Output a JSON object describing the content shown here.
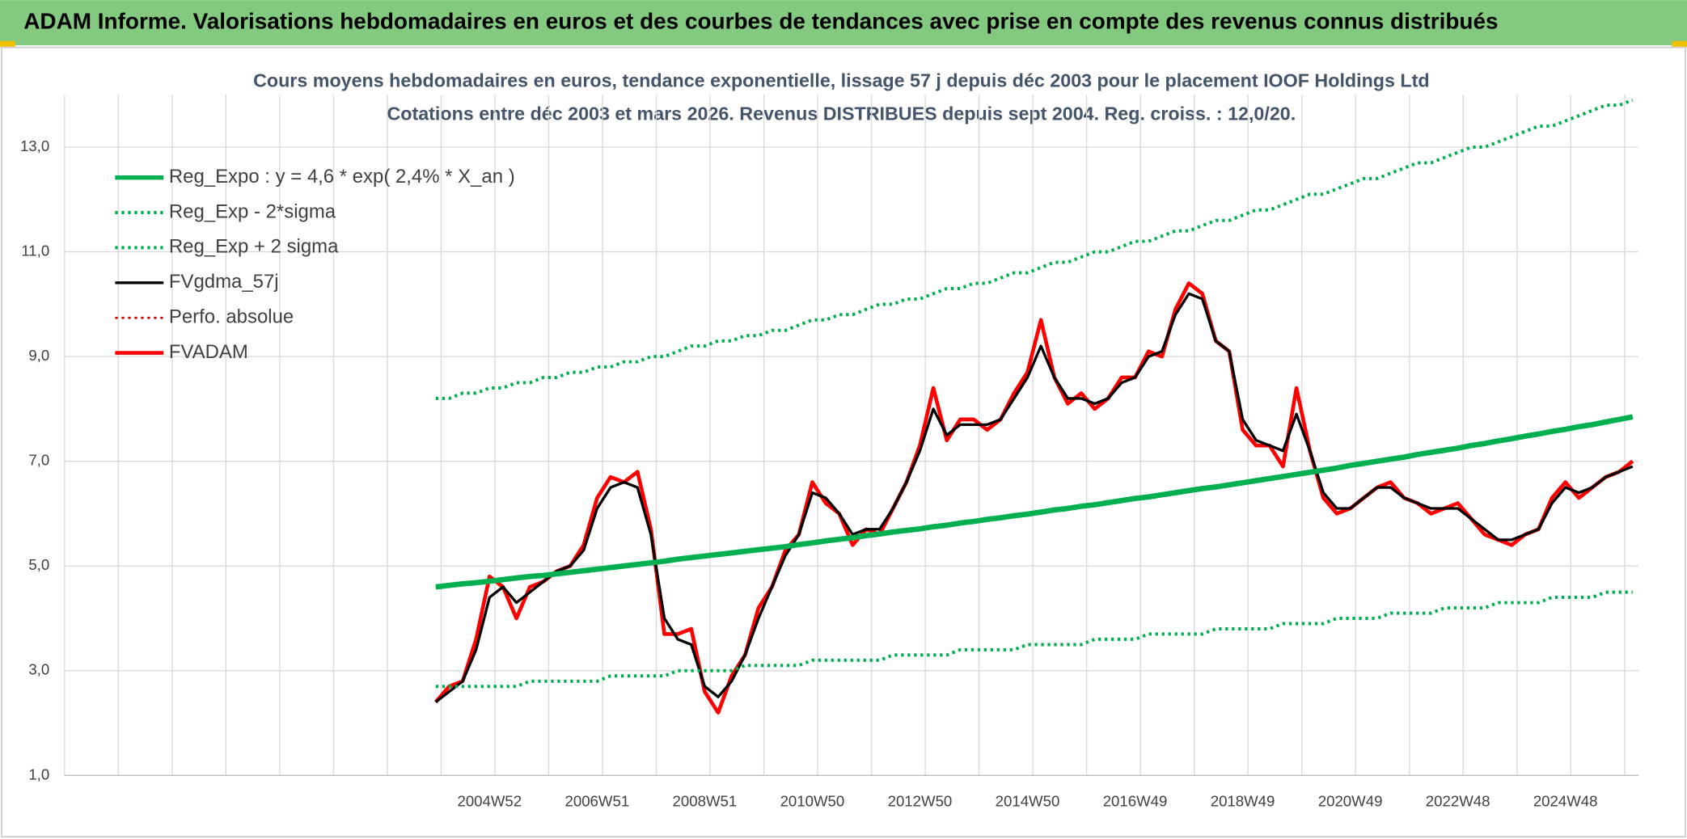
{
  "header": {
    "title": "ADAM Informe. Valorisations hebdomadaires en euros et des courbes de tendances avec prise en compte des revenus connus distribués"
  },
  "chart_data": {
    "type": "line",
    "title": "Cours moyens hebdomadaires en euros, tendance exponentielle, lissage 57 j depuis déc 2003 pour le placement IOOF Holdings Ltd",
    "subtitle": "Cotations entre déc 2003 et mars 2026. Revenus DISTRIBUES depuis sept 2004. Reg. croiss. : 12,0/20.",
    "categories": [
      null,
      null,
      null,
      null,
      "2004W52",
      null,
      null,
      null,
      null,
      null,
      null,
      null,
      "2006W51",
      null,
      null,
      null,
      null,
      null,
      null,
      null,
      "2008W51",
      null,
      null,
      null,
      null,
      null,
      null,
      null,
      "2010W50",
      null,
      null,
      null,
      null,
      null,
      null,
      null,
      "2012W50",
      null,
      null,
      null,
      null,
      null,
      null,
      null,
      "2014W50",
      null,
      null,
      null,
      null,
      null,
      null,
      null,
      "2016W49",
      null,
      null,
      null,
      null,
      null,
      null,
      null,
      "2018W49",
      null,
      null,
      null,
      null,
      null,
      null,
      null,
      "2020W49",
      null,
      null,
      null,
      null,
      null,
      null,
      null,
      "2022W48",
      null,
      null,
      null,
      null,
      null,
      null,
      null,
      "2024W48",
      null,
      null,
      null,
      null,
      null
    ],
    "ylim": [
      1,
      14
    ],
    "yticks": [
      {
        "value": 1,
        "label": "1,0"
      },
      {
        "value": 3,
        "label": "3,0"
      },
      {
        "value": 5,
        "label": "5,0"
      },
      {
        "value": 7,
        "label": "7,0"
      },
      {
        "value": 9,
        "label": "9,0"
      },
      {
        "value": 11,
        "label": "11,0"
      },
      {
        "value": 13,
        "label": "13,0"
      }
    ],
    "grid": true,
    "legend": "top-left",
    "series": [
      {
        "name": "Reg_Expo : y = 4,6 * exp( 2,4% *  X_an )",
        "color": "#00b050",
        "style": "solid",
        "width": 5,
        "values": [
          4.6,
          4.63,
          4.66,
          4.68,
          4.71,
          4.74,
          4.77,
          4.8,
          4.82,
          4.85,
          4.88,
          4.91,
          4.94,
          4.97,
          5.0,
          5.03,
          5.06,
          5.09,
          5.13,
          5.16,
          5.19,
          5.22,
          5.25,
          5.28,
          5.31,
          5.34,
          5.37,
          5.41,
          5.44,
          5.48,
          5.51,
          5.54,
          5.58,
          5.61,
          5.65,
          5.68,
          5.71,
          5.75,
          5.78,
          5.82,
          5.85,
          5.89,
          5.92,
          5.96,
          5.99,
          6.03,
          6.07,
          6.1,
          6.14,
          6.17,
          6.21,
          6.25,
          6.29,
          6.32,
          6.36,
          6.4,
          6.44,
          6.48,
          6.51,
          6.55,
          6.59,
          6.63,
          6.67,
          6.71,
          6.75,
          6.79,
          6.83,
          6.87,
          6.92,
          6.96,
          7.0,
          7.04,
          7.08,
          7.13,
          7.17,
          7.21,
          7.25,
          7.3,
          7.34,
          7.39,
          7.43,
          7.48,
          7.52,
          7.57,
          7.61,
          7.66,
          7.7,
          7.75,
          7.8,
          7.85
        ]
      },
      {
        "name": "Reg_Exp - 2*sigma",
        "color": "#00b050",
        "style": "dotted",
        "width": 3,
        "values": [
          2.7,
          2.7,
          2.7,
          2.7,
          2.7,
          2.7,
          2.7,
          2.8,
          2.8,
          2.8,
          2.8,
          2.8,
          2.8,
          2.9,
          2.9,
          2.9,
          2.9,
          2.9,
          3.0,
          3.0,
          3.0,
          3.0,
          3.0,
          3.1,
          3.1,
          3.1,
          3.1,
          3.1,
          3.2,
          3.2,
          3.2,
          3.2,
          3.2,
          3.2,
          3.3,
          3.3,
          3.3,
          3.3,
          3.3,
          3.4,
          3.4,
          3.4,
          3.4,
          3.4,
          3.5,
          3.5,
          3.5,
          3.5,
          3.5,
          3.6,
          3.6,
          3.6,
          3.6,
          3.7,
          3.7,
          3.7,
          3.7,
          3.7,
          3.8,
          3.8,
          3.8,
          3.8,
          3.8,
          3.9,
          3.9,
          3.9,
          3.9,
          4.0,
          4.0,
          4.0,
          4.0,
          4.1,
          4.1,
          4.1,
          4.1,
          4.2,
          4.2,
          4.2,
          4.2,
          4.3,
          4.3,
          4.3,
          4.3,
          4.4,
          4.4,
          4.4,
          4.4,
          4.5,
          4.5,
          4.5
        ]
      },
      {
        "name": "Reg_Exp + 2 sigma",
        "color": "#00b050",
        "style": "dotted",
        "width": 3,
        "values": [
          8.2,
          8.2,
          8.3,
          8.3,
          8.4,
          8.4,
          8.5,
          8.5,
          8.6,
          8.6,
          8.7,
          8.7,
          8.8,
          8.8,
          8.9,
          8.9,
          9.0,
          9.0,
          9.1,
          9.2,
          9.2,
          9.3,
          9.3,
          9.4,
          9.4,
          9.5,
          9.5,
          9.6,
          9.7,
          9.7,
          9.8,
          9.8,
          9.9,
          10.0,
          10.0,
          10.1,
          10.1,
          10.2,
          10.3,
          10.3,
          10.4,
          10.4,
          10.5,
          10.6,
          10.6,
          10.7,
          10.8,
          10.8,
          10.9,
          11.0,
          11.0,
          11.1,
          11.2,
          11.2,
          11.3,
          11.4,
          11.4,
          11.5,
          11.6,
          11.6,
          11.7,
          11.8,
          11.8,
          11.9,
          12.0,
          12.1,
          12.1,
          12.2,
          12.3,
          12.4,
          12.4,
          12.5,
          12.6,
          12.7,
          12.7,
          12.8,
          12.9,
          13.0,
          13.0,
          13.1,
          13.2,
          13.3,
          13.4,
          13.4,
          13.5,
          13.6,
          13.7,
          13.8,
          13.8,
          13.9
        ]
      },
      {
        "name": "FVgdma_57j",
        "color": "#000000",
        "style": "solid",
        "width": 2.5,
        "values": [
          2.4,
          2.6,
          2.8,
          3.4,
          4.4,
          4.6,
          4.3,
          4.5,
          4.7,
          4.9,
          5.0,
          5.3,
          6.1,
          6.5,
          6.6,
          6.5,
          5.6,
          4.0,
          3.6,
          3.5,
          2.7,
          2.5,
          2.8,
          3.3,
          4.0,
          4.6,
          5.2,
          5.6,
          6.4,
          6.3,
          6.0,
          5.6,
          5.7,
          5.7,
          6.1,
          6.6,
          7.2,
          8.0,
          7.5,
          7.7,
          7.7,
          7.7,
          7.8,
          8.2,
          8.6,
          9.2,
          8.6,
          8.2,
          8.2,
          8.1,
          8.2,
          8.5,
          8.6,
          9.0,
          9.1,
          9.8,
          10.2,
          10.1,
          9.3,
          9.1,
          7.8,
          7.4,
          7.3,
          7.2,
          7.9,
          7.2,
          6.4,
          6.1,
          6.1,
          6.3,
          6.5,
          6.5,
          6.3,
          6.2,
          6.1,
          6.1,
          6.1,
          5.9,
          5.7,
          5.5,
          5.5,
          5.6,
          5.7,
          6.2,
          6.5,
          6.4,
          6.5,
          6.7,
          6.8,
          6.9
        ]
      },
      {
        "name": "Perfo. absolue",
        "color": "#c00000",
        "style": "dotted",
        "width": 2,
        "values": [
          null,
          null,
          null,
          null,
          null,
          null,
          null,
          null,
          null,
          null,
          null,
          null,
          null,
          null,
          null,
          null,
          null,
          null,
          null,
          null,
          null,
          null,
          null,
          null,
          null,
          null,
          null,
          null,
          null,
          null,
          null,
          null,
          null,
          null,
          null,
          null,
          null,
          null,
          null,
          null,
          null,
          null,
          null,
          null,
          null,
          null,
          null,
          null,
          null,
          null,
          null,
          null,
          null,
          null,
          null,
          null,
          null,
          null,
          null,
          null,
          null,
          null,
          null,
          null,
          null,
          null,
          null,
          null,
          null,
          null,
          null,
          null,
          null,
          null,
          null,
          null,
          null,
          null,
          null,
          null,
          null,
          null,
          null,
          null,
          null,
          null,
          null,
          null,
          null,
          null
        ]
      },
      {
        "name": "FVADAM",
        "color": "#ff0000",
        "style": "solid",
        "width": 3.5,
        "values": [
          2.4,
          2.7,
          2.8,
          3.6,
          4.8,
          4.6,
          4.0,
          4.6,
          4.7,
          4.9,
          5.0,
          5.4,
          6.3,
          6.7,
          6.6,
          6.8,
          5.7,
          3.7,
          3.7,
          3.8,
          2.6,
          2.2,
          2.9,
          3.3,
          4.2,
          4.6,
          5.3,
          5.6,
          6.6,
          6.2,
          6.0,
          5.4,
          5.7,
          5.6,
          6.1,
          6.6,
          7.3,
          8.4,
          7.4,
          7.8,
          7.8,
          7.6,
          7.8,
          8.3,
          8.7,
          9.7,
          8.6,
          8.1,
          8.3,
          8.0,
          8.2,
          8.6,
          8.6,
          9.1,
          9.0,
          9.9,
          10.4,
          10.2,
          9.3,
          9.1,
          7.6,
          7.3,
          7.3,
          6.9,
          8.4,
          7.2,
          6.3,
          6.0,
          6.1,
          6.3,
          6.5,
          6.6,
          6.3,
          6.2,
          6.0,
          6.1,
          6.2,
          5.9,
          5.6,
          5.5,
          5.4,
          5.6,
          5.7,
          6.3,
          6.6,
          6.3,
          6.5,
          6.7,
          6.8,
          7.0
        ]
      }
    ]
  }
}
